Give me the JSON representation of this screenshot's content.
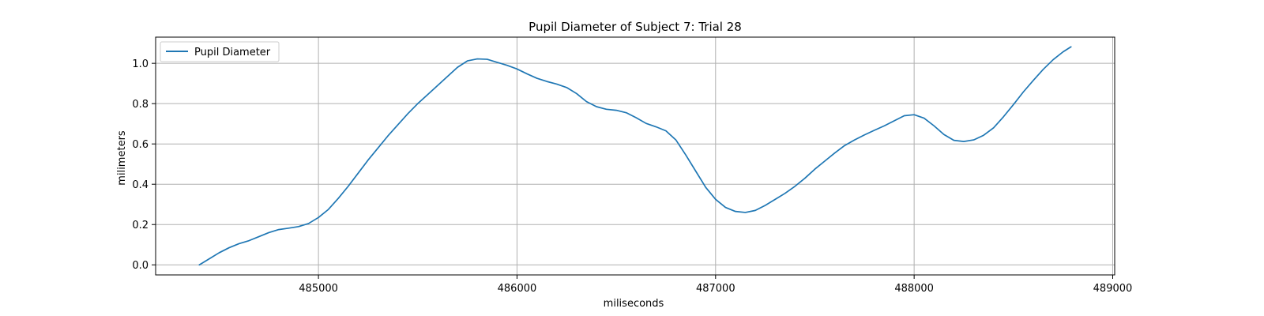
{
  "chart_data": {
    "type": "line",
    "title": "Pupil Diameter of Subject 7: Trial 28",
    "xlabel": "miliseconds",
    "ylabel": "milimeters",
    "xlim": [
      484180,
      489010
    ],
    "ylim": [
      -0.05,
      1.13
    ],
    "xticks": [
      485000,
      486000,
      487000,
      488000,
      489000
    ],
    "yticks": [
      0.0,
      0.2,
      0.4,
      0.6,
      0.8,
      1.0
    ],
    "xtick_labels": [
      "485000",
      "486000",
      "487000",
      "488000",
      "489000"
    ],
    "ytick_labels": [
      "0.0",
      "0.2",
      "0.4",
      "0.6",
      "0.8",
      "1.0"
    ],
    "grid": true,
    "legend_position": "top-left",
    "series": [
      {
        "name": "Pupil Diameter",
        "color": "#1f77b4",
        "points": [
          [
            484400,
            0.0
          ],
          [
            484450,
            0.03
          ],
          [
            484500,
            0.06
          ],
          [
            484550,
            0.085
          ],
          [
            484600,
            0.105
          ],
          [
            484650,
            0.12
          ],
          [
            484700,
            0.14
          ],
          [
            484750,
            0.16
          ],
          [
            484800,
            0.175
          ],
          [
            484850,
            0.182
          ],
          [
            484900,
            0.19
          ],
          [
            484950,
            0.205
          ],
          [
            485000,
            0.235
          ],
          [
            485050,
            0.275
          ],
          [
            485100,
            0.33
          ],
          [
            485150,
            0.39
          ],
          [
            485200,
            0.455
          ],
          [
            485250,
            0.52
          ],
          [
            485300,
            0.58
          ],
          [
            485350,
            0.64
          ],
          [
            485400,
            0.695
          ],
          [
            485450,
            0.75
          ],
          [
            485500,
            0.8
          ],
          [
            485550,
            0.845
          ],
          [
            485600,
            0.89
          ],
          [
            485650,
            0.935
          ],
          [
            485700,
            0.98
          ],
          [
            485750,
            1.012
          ],
          [
            485800,
            1.022
          ],
          [
            485850,
            1.02
          ],
          [
            485900,
            1.005
          ],
          [
            485950,
            0.99
          ],
          [
            486000,
            0.972
          ],
          [
            486050,
            0.948
          ],
          [
            486100,
            0.926
          ],
          [
            486150,
            0.91
          ],
          [
            486200,
            0.897
          ],
          [
            486250,
            0.88
          ],
          [
            486300,
            0.85
          ],
          [
            486350,
            0.81
          ],
          [
            486400,
            0.785
          ],
          [
            486450,
            0.772
          ],
          [
            486500,
            0.767
          ],
          [
            486550,
            0.755
          ],
          [
            486600,
            0.73
          ],
          [
            486650,
            0.702
          ],
          [
            486700,
            0.685
          ],
          [
            486750,
            0.665
          ],
          [
            486800,
            0.62
          ],
          [
            486850,
            0.545
          ],
          [
            486900,
            0.465
          ],
          [
            486950,
            0.385
          ],
          [
            487000,
            0.325
          ],
          [
            487050,
            0.285
          ],
          [
            487100,
            0.265
          ],
          [
            487150,
            0.26
          ],
          [
            487200,
            0.27
          ],
          [
            487250,
            0.295
          ],
          [
            487300,
            0.325
          ],
          [
            487350,
            0.355
          ],
          [
            487400,
            0.39
          ],
          [
            487450,
            0.43
          ],
          [
            487500,
            0.475
          ],
          [
            487550,
            0.515
          ],
          [
            487600,
            0.555
          ],
          [
            487650,
            0.592
          ],
          [
            487700,
            0.62
          ],
          [
            487750,
            0.645
          ],
          [
            487800,
            0.668
          ],
          [
            487850,
            0.69
          ],
          [
            487900,
            0.715
          ],
          [
            487950,
            0.74
          ],
          [
            488000,
            0.745
          ],
          [
            488050,
            0.728
          ],
          [
            488100,
            0.69
          ],
          [
            488150,
            0.647
          ],
          [
            488200,
            0.618
          ],
          [
            488250,
            0.612
          ],
          [
            488300,
            0.62
          ],
          [
            488350,
            0.643
          ],
          [
            488400,
            0.68
          ],
          [
            488450,
            0.735
          ],
          [
            488500,
            0.795
          ],
          [
            488550,
            0.858
          ],
          [
            488600,
            0.915
          ],
          [
            488650,
            0.97
          ],
          [
            488700,
            1.018
          ],
          [
            488750,
            1.057
          ],
          [
            488790,
            1.082
          ]
        ]
      }
    ]
  }
}
